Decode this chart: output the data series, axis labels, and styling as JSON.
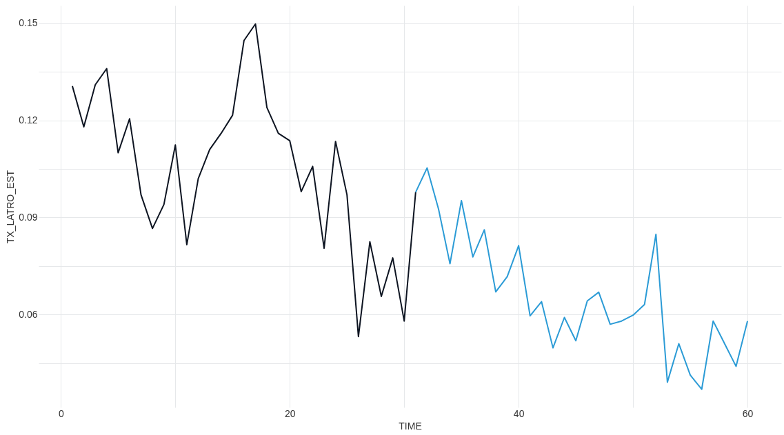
{
  "chart_data": {
    "type": "line",
    "xlabel": "TIME",
    "ylabel": "TX_LATRO_EST",
    "xlim": [
      -1.95,
      62.95
    ],
    "ylim": [
      0.0313,
      0.1555
    ],
    "xticks": [
      0,
      {
        "value": 10,
        "label": null
      },
      20,
      {
        "value": 30,
        "label": null
      },
      40,
      {
        "value": 50,
        "label": null
      },
      60
    ],
    "yticks": [
      {
        "value": 0.045,
        "label": null
      },
      0.06,
      {
        "value": 0.075,
        "label": null
      },
      0.09,
      {
        "value": 0.105,
        "label": null
      },
      0.12,
      {
        "value": 0.135,
        "label": null
      },
      0.15
    ],
    "grid": true,
    "line_style": "solid",
    "series": [
      {
        "color": "#0d1421",
        "x": [
          1,
          2,
          3,
          4,
          5,
          6,
          7,
          8,
          9,
          10,
          11,
          12,
          13,
          14,
          15,
          16,
          17,
          18,
          19,
          20,
          21,
          22,
          23,
          24,
          25,
          26,
          27,
          28,
          29,
          30,
          31
        ],
        "values": [
          0.1306,
          0.118,
          0.131,
          0.136,
          0.11,
          0.1205,
          0.097,
          0.0866,
          0.094,
          0.1124,
          0.0816,
          0.102,
          0.111,
          0.116,
          0.1216,
          0.1447,
          0.1498,
          0.124,
          0.116,
          0.1137,
          0.098,
          0.1058,
          0.0805,
          0.1135,
          0.097,
          0.0532,
          0.0825,
          0.0656,
          0.0775,
          0.058,
          0.0978
        ]
      },
      {
        "color": "#2b9bd6",
        "x": [
          31,
          32,
          33,
          34,
          35,
          36,
          37,
          38,
          39,
          40,
          41,
          42,
          43,
          44,
          45,
          46,
          47,
          48,
          49,
          50,
          51,
          52,
          53,
          54,
          55,
          56,
          57,
          58,
          59,
          60
        ],
        "values": [
          0.0978,
          0.1053,
          0.0926,
          0.0757,
          0.0952,
          0.0778,
          0.0862,
          0.067,
          0.0717,
          0.0813,
          0.0596,
          0.064,
          0.0497,
          0.0591,
          0.0519,
          0.0642,
          0.0669,
          0.057,
          0.058,
          0.0598,
          0.0631,
          0.0848,
          0.0391,
          0.051,
          0.0413,
          0.0369,
          0.058,
          0.051,
          0.044,
          0.058
        ]
      }
    ]
  }
}
